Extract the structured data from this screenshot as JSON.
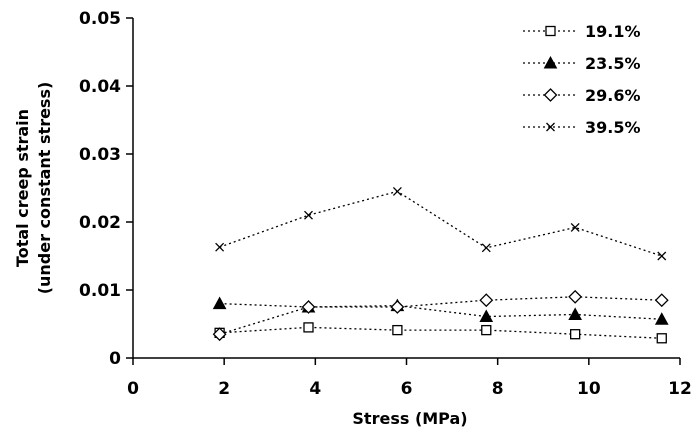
{
  "chart_data": {
    "type": "line",
    "xlabel": "Stress (MPa)",
    "ylabel_line1": "Total creep strain",
    "ylabel_line2": "(under constant stress)",
    "xlim": [
      0,
      12
    ],
    "ylim": [
      0,
      0.05
    ],
    "x_ticks": [
      "0",
      "2",
      "4",
      "6",
      "8",
      "10",
      "12"
    ],
    "y_ticks": [
      "0",
      "0.01",
      "0.02",
      "0.03",
      "0.04",
      "0.05"
    ],
    "grid": false,
    "legend_position": "top-right",
    "x": [
      1.9,
      3.85,
      5.8,
      7.75,
      9.7,
      11.6
    ],
    "series": [
      {
        "name": "19.1%",
        "marker": "square-open",
        "values": [
          0.0037,
          0.0045,
          0.0041,
          0.0041,
          0.0035,
          0.0029
        ]
      },
      {
        "name": "23.5%",
        "marker": "triangle-filled",
        "values": [
          0.008,
          0.0075,
          0.0077,
          0.0061,
          0.0064,
          0.0057
        ]
      },
      {
        "name": "29.6%",
        "marker": "diamond-open",
        "values": [
          0.0035,
          0.0075,
          0.0075,
          0.0085,
          0.009,
          0.0085
        ]
      },
      {
        "name": "39.5%",
        "marker": "x",
        "values": [
          0.0163,
          0.021,
          0.0245,
          0.0162,
          0.0192,
          0.015
        ]
      }
    ]
  }
}
